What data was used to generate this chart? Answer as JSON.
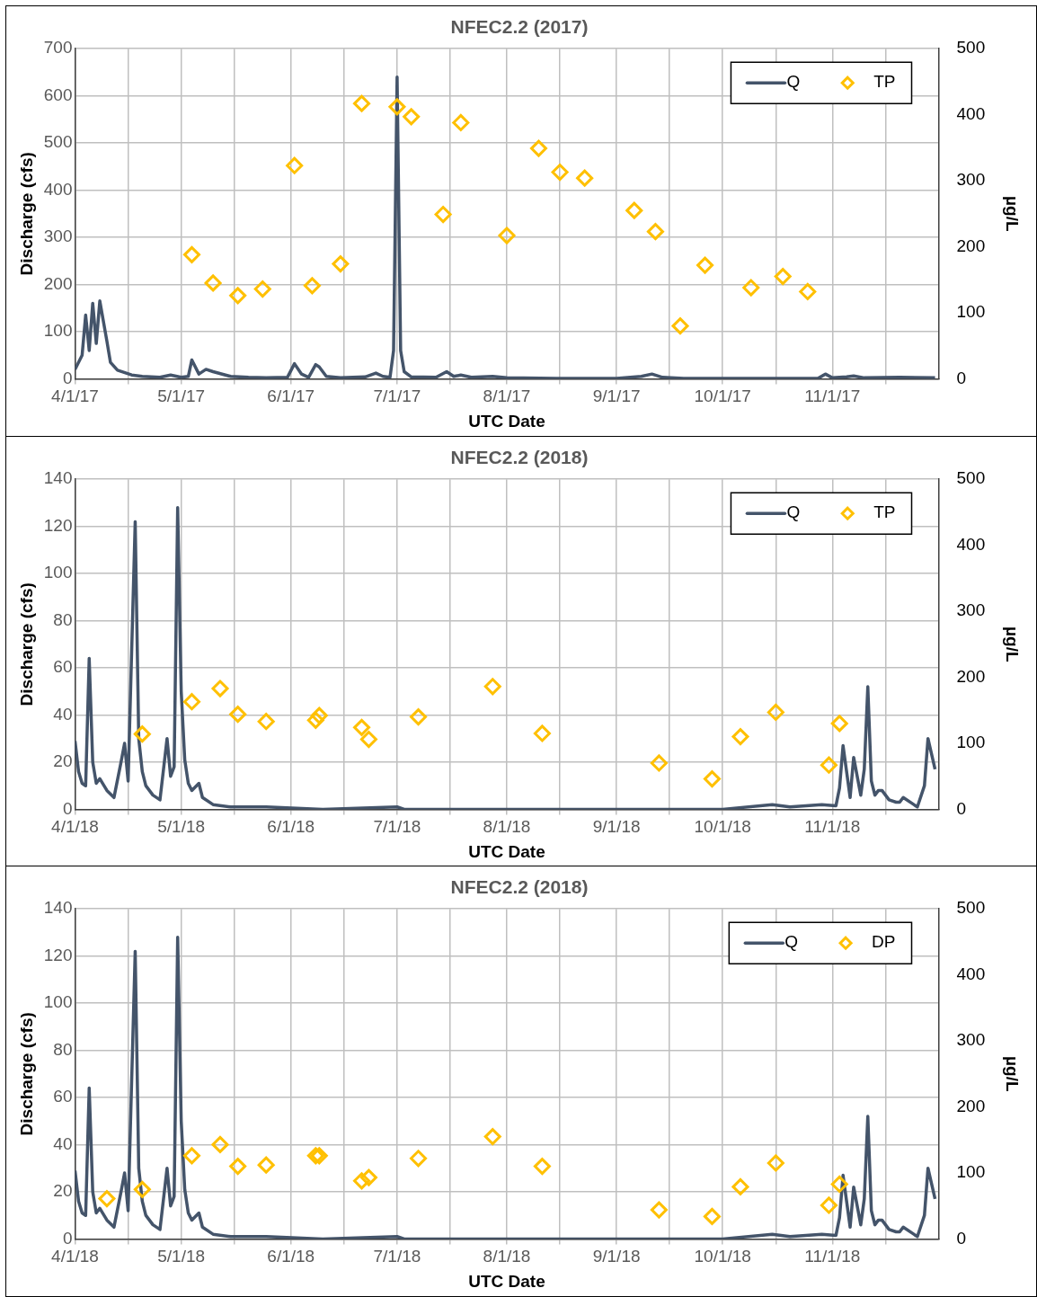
{
  "chart_data": [
    {
      "type": "line",
      "title": "NFEC2.2 (2017)",
      "xlabel": "UTC Date",
      "ylabel": "Discharge (cfs)",
      "y2label": "µg/L",
      "grid": true,
      "legend": "top right",
      "xlim": [
        "2017-04-01",
        "2017-12-01"
      ],
      "xticks": [
        {
          "value": "2017-04-01",
          "label": "4/1/17"
        },
        {
          "value": "2017-04-16",
          "label": null
        },
        {
          "value": "2017-05-01",
          "label": "5/1/17"
        },
        {
          "value": "2017-05-16",
          "label": null
        },
        {
          "value": "2017-06-01",
          "label": "6/1/17"
        },
        {
          "value": "2017-06-16",
          "label": null
        },
        {
          "value": "2017-07-01",
          "label": "7/1/17"
        },
        {
          "value": "2017-07-16",
          "label": null
        },
        {
          "value": "2017-08-01",
          "label": "8/1/17"
        },
        {
          "value": "2017-08-16",
          "label": null
        },
        {
          "value": "2017-09-01",
          "label": "9/1/17"
        },
        {
          "value": "2017-09-16",
          "label": null
        },
        {
          "value": "2017-10-01",
          "label": "10/1/17"
        },
        {
          "value": "2017-10-16",
          "label": null
        },
        {
          "value": "2017-11-01",
          "label": "11/1/17"
        },
        {
          "value": "2017-11-16",
          "label": null
        }
      ],
      "ylim": [
        0,
        700
      ],
      "yticks": [
        0,
        100,
        200,
        300,
        400,
        500,
        600,
        700
      ],
      "y2lim": [
        0,
        500
      ],
      "y2ticks": [
        0,
        100,
        200,
        300,
        400,
        500
      ],
      "series": [
        {
          "name": "Q",
          "type": "line",
          "color": "#44546a",
          "marker": "none",
          "x": [
            "2017-04-01",
            "2017-04-03",
            "2017-04-04",
            "2017-04-05",
            "2017-04-06",
            "2017-04-07",
            "2017-04-08",
            "2017-04-10",
            "2017-04-11",
            "2017-04-13",
            "2017-04-17",
            "2017-04-20",
            "2017-04-25",
            "2017-04-28",
            "2017-05-01",
            "2017-05-03",
            "2017-05-04",
            "2017-05-06",
            "2017-05-08",
            "2017-05-10",
            "2017-05-15",
            "2017-05-20",
            "2017-05-25",
            "2017-05-31",
            "2017-06-02",
            "2017-06-04",
            "2017-06-06",
            "2017-06-08",
            "2017-06-09",
            "2017-06-11",
            "2017-06-15",
            "2017-06-22",
            "2017-06-25",
            "2017-06-27",
            "2017-06-29",
            "2017-06-30",
            "2017-07-01",
            "2017-07-02",
            "2017-07-03",
            "2017-07-05",
            "2017-07-12",
            "2017-07-15",
            "2017-07-17",
            "2017-07-19",
            "2017-07-22",
            "2017-07-28",
            "2017-08-01",
            "2017-08-15",
            "2017-09-01",
            "2017-09-08",
            "2017-09-11",
            "2017-09-14",
            "2017-09-20",
            "2017-10-01",
            "2017-10-28",
            "2017-10-30",
            "2017-11-01",
            "2017-11-05",
            "2017-11-07",
            "2017-11-10",
            "2017-11-20",
            "2017-11-30"
          ],
          "values": [
            20,
            50,
            135,
            60,
            160,
            75,
            165,
            80,
            35,
            18,
            8,
            5,
            3,
            8,
            3,
            5,
            40,
            10,
            20,
            15,
            5,
            3,
            2,
            3,
            32,
            10,
            3,
            30,
            25,
            5,
            2,
            4,
            12,
            5,
            3,
            60,
            640,
            60,
            15,
            4,
            3,
            15,
            5,
            8,
            3,
            5,
            2,
            1,
            1,
            5,
            10,
            3,
            1,
            1,
            1,
            10,
            2,
            4,
            6,
            2,
            3,
            2
          ]
        },
        {
          "name": "TP",
          "type": "scatter",
          "axis": "y2",
          "color": "#ffc000",
          "marker": "diamond",
          "x": [
            "2017-05-04",
            "2017-05-10",
            "2017-05-17",
            "2017-05-24",
            "2017-06-02",
            "2017-06-07",
            "2017-06-15",
            "2017-06-21",
            "2017-07-01",
            "2017-07-05",
            "2017-07-14",
            "2017-07-19",
            "2017-08-01",
            "2017-08-10",
            "2017-08-16",
            "2017-08-23",
            "2017-09-06",
            "2017-09-12",
            "2017-09-19",
            "2017-09-26",
            "2017-10-09",
            "2017-10-18",
            "2017-10-25"
          ],
          "values": [
            188,
            145,
            126,
            136,
            323,
            141,
            174,
            417,
            412,
            397,
            249,
            388,
            217,
            349,
            313,
            304,
            255,
            223,
            80,
            172,
            138,
            155,
            132
          ]
        }
      ]
    },
    {
      "type": "line",
      "title": "NFEC2.2 (2018)",
      "xlabel": "UTC Date",
      "ylabel": "Discharge (cfs)",
      "y2label": "µg/L",
      "grid": true,
      "legend": "top right",
      "xlim": [
        "2018-04-01",
        "2018-12-01"
      ],
      "xticks": [
        {
          "value": "2018-04-01",
          "label": "4/1/18"
        },
        {
          "value": "2018-04-16",
          "label": null
        },
        {
          "value": "2018-05-01",
          "label": "5/1/18"
        },
        {
          "value": "2018-05-16",
          "label": null
        },
        {
          "value": "2018-06-01",
          "label": "6/1/18"
        },
        {
          "value": "2018-06-16",
          "label": null
        },
        {
          "value": "2018-07-01",
          "label": "7/1/18"
        },
        {
          "value": "2018-07-16",
          "label": null
        },
        {
          "value": "2018-08-01",
          "label": "8/1/18"
        },
        {
          "value": "2018-08-16",
          "label": null
        },
        {
          "value": "2018-09-01",
          "label": "9/1/18"
        },
        {
          "value": "2018-09-16",
          "label": null
        },
        {
          "value": "2018-10-01",
          "label": "10/1/18"
        },
        {
          "value": "2018-10-16",
          "label": null
        },
        {
          "value": "2018-11-01",
          "label": "11/1/18"
        },
        {
          "value": "2018-11-16",
          "label": null
        }
      ],
      "ylim": [
        0,
        140
      ],
      "yticks": [
        0,
        20,
        40,
        60,
        80,
        100,
        120,
        140
      ],
      "y2lim": [
        0,
        500
      ],
      "y2ticks": [
        0,
        100,
        200,
        300,
        400,
        500
      ],
      "series": [
        {
          "name": "Q",
          "type": "line",
          "color": "#44546a",
          "marker": "none",
          "x": [
            "2018-04-01",
            "2018-04-02",
            "2018-04-03",
            "2018-04-04",
            "2018-04-05",
            "2018-04-06",
            "2018-04-07",
            "2018-04-08",
            "2018-04-10",
            "2018-04-12",
            "2018-04-14",
            "2018-04-15",
            "2018-04-16",
            "2018-04-18",
            "2018-04-19",
            "2018-04-20",
            "2018-04-21",
            "2018-04-23",
            "2018-04-25",
            "2018-04-27",
            "2018-04-28",
            "2018-04-29",
            "2018-04-30",
            "2018-05-01",
            "2018-05-02",
            "2018-05-03",
            "2018-05-04",
            "2018-05-06",
            "2018-05-07",
            "2018-05-10",
            "2018-05-15",
            "2018-05-25",
            "2018-06-10",
            "2018-07-01",
            "2018-07-03",
            "2018-09-01",
            "2018-10-01",
            "2018-10-15",
            "2018-10-20",
            "2018-10-29",
            "2018-11-02",
            "2018-11-03",
            "2018-11-04",
            "2018-11-06",
            "2018-11-07",
            "2018-11-09",
            "2018-11-10",
            "2018-11-11",
            "2018-11-12",
            "2018-11-13",
            "2018-11-14",
            "2018-11-15",
            "2018-11-17",
            "2018-11-19",
            "2018-11-20",
            "2018-11-21",
            "2018-11-24",
            "2018-11-25",
            "2018-11-27",
            "2018-11-28",
            "2018-11-30"
          ],
          "values": [
            29,
            16,
            11,
            10,
            64,
            20,
            11,
            13,
            8,
            5,
            20,
            28,
            12,
            122,
            30,
            16,
            10,
            6,
            4,
            30,
            14,
            18,
            128,
            50,
            21,
            11,
            8,
            11,
            5,
            2,
            1,
            1,
            0,
            1,
            0,
            0,
            0,
            2,
            1,
            2,
            1.5,
            9,
            27,
            5,
            22,
            6,
            17,
            52,
            12,
            6,
            8,
            8,
            4,
            3,
            3,
            5,
            2,
            1,
            10,
            30,
            17
          ]
        },
        {
          "name": "TP",
          "type": "scatter",
          "axis": "y2",
          "color": "#ffc000",
          "marker": "diamond",
          "x": [
            "2018-04-20",
            "2018-05-04",
            "2018-05-12",
            "2018-05-17",
            "2018-05-25",
            "2018-06-08",
            "2018-06-09",
            "2018-06-21",
            "2018-06-23",
            "2018-07-07",
            "2018-07-28",
            "2018-08-11",
            "2018-09-13",
            "2018-09-28",
            "2018-10-06",
            "2018-10-16",
            "2018-10-31",
            "2018-11-03"
          ],
          "values": [
            114,
            163,
            183,
            144,
            133,
            135,
            142,
            124,
            106,
            140,
            186,
            115,
            70,
            46,
            110,
            147,
            67,
            130
          ]
        }
      ]
    },
    {
      "type": "line",
      "title": "NFEC2.2 (2018)",
      "xlabel": "UTC Date",
      "ylabel": "Discharge (cfs)",
      "y2label": "µg/L",
      "grid": true,
      "legend": "top right",
      "xlim": [
        "2018-04-01",
        "2018-12-01"
      ],
      "xticks": [
        {
          "value": "2018-04-01",
          "label": "4/1/18"
        },
        {
          "value": "2018-04-16",
          "label": null
        },
        {
          "value": "2018-05-01",
          "label": "5/1/18"
        },
        {
          "value": "2018-05-16",
          "label": null
        },
        {
          "value": "2018-06-01",
          "label": "6/1/18"
        },
        {
          "value": "2018-06-16",
          "label": null
        },
        {
          "value": "2018-07-01",
          "label": "7/1/18"
        },
        {
          "value": "2018-07-16",
          "label": null
        },
        {
          "value": "2018-08-01",
          "label": "8/1/18"
        },
        {
          "value": "2018-08-16",
          "label": null
        },
        {
          "value": "2018-09-01",
          "label": "9/1/18"
        },
        {
          "value": "2018-09-16",
          "label": null
        },
        {
          "value": "2018-10-01",
          "label": "10/1/18"
        },
        {
          "value": "2018-10-16",
          "label": null
        },
        {
          "value": "2018-11-01",
          "label": "11/1/18"
        },
        {
          "value": "2018-11-16",
          "label": null
        }
      ],
      "ylim": [
        0,
        140
      ],
      "yticks": [
        0,
        20,
        40,
        60,
        80,
        100,
        120,
        140
      ],
      "y2lim": [
        0,
        500
      ],
      "y2ticks": [
        0,
        100,
        200,
        300,
        400,
        500
      ],
      "series": [
        {
          "name": "Q",
          "type": "line",
          "color": "#44546a",
          "marker": "none",
          "x": [
            "2018-04-01",
            "2018-04-02",
            "2018-04-03",
            "2018-04-04",
            "2018-04-05",
            "2018-04-06",
            "2018-04-07",
            "2018-04-08",
            "2018-04-10",
            "2018-04-12",
            "2018-04-14",
            "2018-04-15",
            "2018-04-16",
            "2018-04-18",
            "2018-04-19",
            "2018-04-20",
            "2018-04-21",
            "2018-04-23",
            "2018-04-25",
            "2018-04-27",
            "2018-04-28",
            "2018-04-29",
            "2018-04-30",
            "2018-05-01",
            "2018-05-02",
            "2018-05-03",
            "2018-05-04",
            "2018-05-06",
            "2018-05-07",
            "2018-05-10",
            "2018-05-15",
            "2018-05-25",
            "2018-06-10",
            "2018-07-01",
            "2018-07-03",
            "2018-09-01",
            "2018-10-01",
            "2018-10-15",
            "2018-10-20",
            "2018-10-29",
            "2018-11-02",
            "2018-11-03",
            "2018-11-04",
            "2018-11-06",
            "2018-11-07",
            "2018-11-09",
            "2018-11-10",
            "2018-11-11",
            "2018-11-12",
            "2018-11-13",
            "2018-11-14",
            "2018-11-15",
            "2018-11-17",
            "2018-11-19",
            "2018-11-20",
            "2018-11-21",
            "2018-11-24",
            "2018-11-25",
            "2018-11-27",
            "2018-11-28",
            "2018-11-30"
          ],
          "values": [
            29,
            16,
            11,
            10,
            64,
            20,
            11,
            13,
            8,
            5,
            20,
            28,
            12,
            122,
            30,
            16,
            10,
            6,
            4,
            30,
            14,
            18,
            128,
            50,
            21,
            11,
            8,
            11,
            5,
            2,
            1,
            1,
            0,
            1,
            0,
            0,
            0,
            2,
            1,
            2,
            1.5,
            9,
            27,
            5,
            22,
            6,
            17,
            52,
            12,
            6,
            8,
            8,
            4,
            3,
            3,
            5,
            2,
            1,
            10,
            30,
            17
          ]
        },
        {
          "name": "DP",
          "type": "scatter",
          "axis": "y2",
          "color": "#ffc000",
          "marker": "diamond",
          "x": [
            "2018-04-10",
            "2018-04-20",
            "2018-05-04",
            "2018-05-12",
            "2018-05-17",
            "2018-05-25",
            "2018-06-08",
            "2018-06-09",
            "2018-06-21",
            "2018-06-23",
            "2018-07-07",
            "2018-07-28",
            "2018-08-11",
            "2018-09-13",
            "2018-09-28",
            "2018-10-06",
            "2018-10-16",
            "2018-10-31",
            "2018-11-03"
          ],
          "values": [
            61,
            75,
            126,
            143,
            110,
            112,
            126,
            126,
            88,
            93,
            122,
            155,
            110,
            44,
            34,
            79,
            115,
            51,
            83
          ]
        }
      ]
    }
  ]
}
